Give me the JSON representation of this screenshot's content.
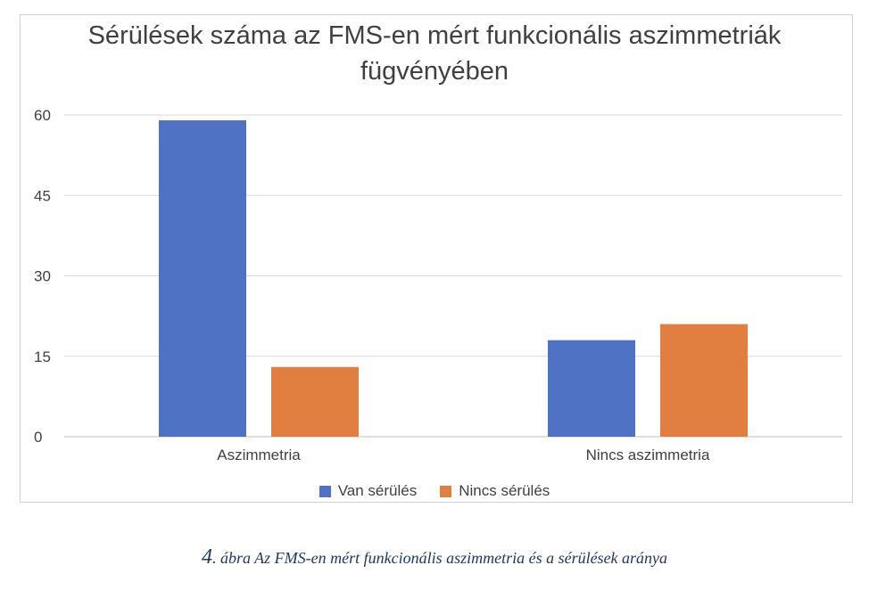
{
  "chart_data": {
    "type": "bar",
    "title_lines": [
      "Sérülések száma az FMS-en mért funkcionális aszimmetriák",
      "fügvényében"
    ],
    "categories": [
      "Aszimmetria",
      "Nincs aszimmetria"
    ],
    "series": [
      {
        "name": "Van sérülés",
        "values": [
          59,
          18
        ],
        "color": "#4f72c4"
      },
      {
        "name": "Nincs sérülés",
        "values": [
          13,
          21
        ],
        "color": "#e07f3f"
      }
    ],
    "y_ticks": [
      0,
      15,
      30,
      45,
      60
    ],
    "y_tick_labels": [
      "0",
      "15",
      "30",
      "45",
      "60"
    ],
    "ylim": [
      0,
      60
    ],
    "grid": true,
    "legend_position": "bottom"
  },
  "caption": {
    "number": "4",
    "text": ". ábra Az FMS-en mért funkcionális aszimmetria és a sérülések aránya"
  }
}
